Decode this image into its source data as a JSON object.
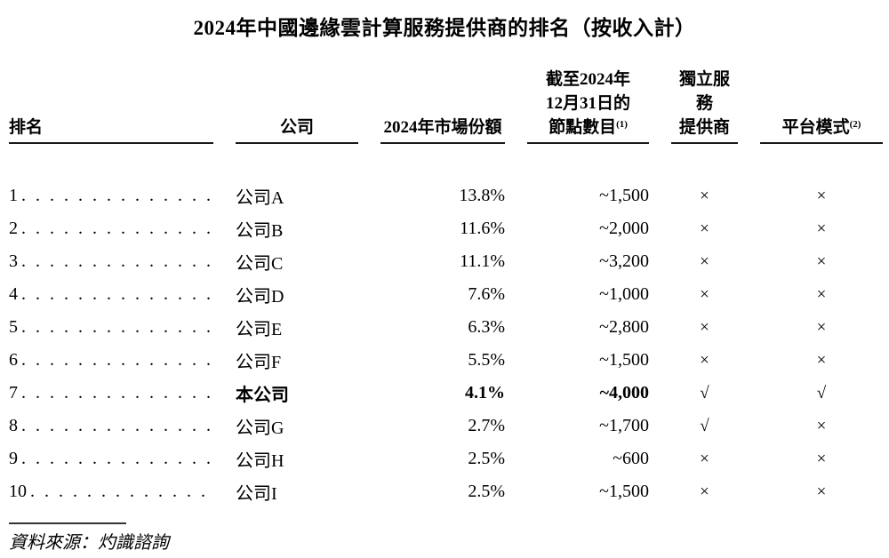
{
  "title": "2024年中國邊緣雲計算服務提供商的排名（按收入計）",
  "table": {
    "headers": {
      "rank": "排名",
      "company": "公司",
      "market_share": "2024年市場份額",
      "nodes_line1": "截至2024年",
      "nodes_line2": "12月31日的",
      "nodes_line3": "節點數目",
      "nodes_sup": "(1)",
      "independent_line1": "獨立服務",
      "independent_line2": "提供商",
      "platform": "平台模式",
      "platform_sup": "(2)"
    },
    "rows": [
      {
        "rank": "1",
        "company": "公司A",
        "market_share": "13.8%",
        "nodes": "~1,500",
        "independent": "×",
        "platform": "×"
      },
      {
        "rank": "2",
        "company": "公司B",
        "market_share": "11.6%",
        "nodes": "~2,000",
        "independent": "×",
        "platform": "×"
      },
      {
        "rank": "3",
        "company": "公司C",
        "market_share": "11.1%",
        "nodes": "~3,200",
        "independent": "×",
        "platform": "×"
      },
      {
        "rank": "4",
        "company": "公司D",
        "market_share": "7.6%",
        "nodes": "~1,000",
        "independent": "×",
        "platform": "×"
      },
      {
        "rank": "5",
        "company": "公司E",
        "market_share": "6.3%",
        "nodes": "~2,800",
        "independent": "×",
        "platform": "×"
      },
      {
        "rank": "6",
        "company": "公司F",
        "market_share": "5.5%",
        "nodes": "~1,500",
        "independent": "×",
        "platform": "×"
      },
      {
        "rank": "7",
        "company": "本公司",
        "market_share": "4.1%",
        "nodes": "~4,000",
        "independent": "√",
        "platform": "√"
      },
      {
        "rank": "8",
        "company": "公司G",
        "market_share": "2.7%",
        "nodes": "~1,700",
        "independent": "√",
        "platform": "×"
      },
      {
        "rank": "9",
        "company": "公司H",
        "market_share": "2.5%",
        "nodes": "~600",
        "independent": "×",
        "platform": "×"
      },
      {
        "rank": "10",
        "company": "公司I",
        "market_share": "2.5%",
        "nodes": "~1,500",
        "independent": "×",
        "platform": "×"
      }
    ]
  },
  "footer": {
    "source": "資料來源：灼識諮詢"
  }
}
